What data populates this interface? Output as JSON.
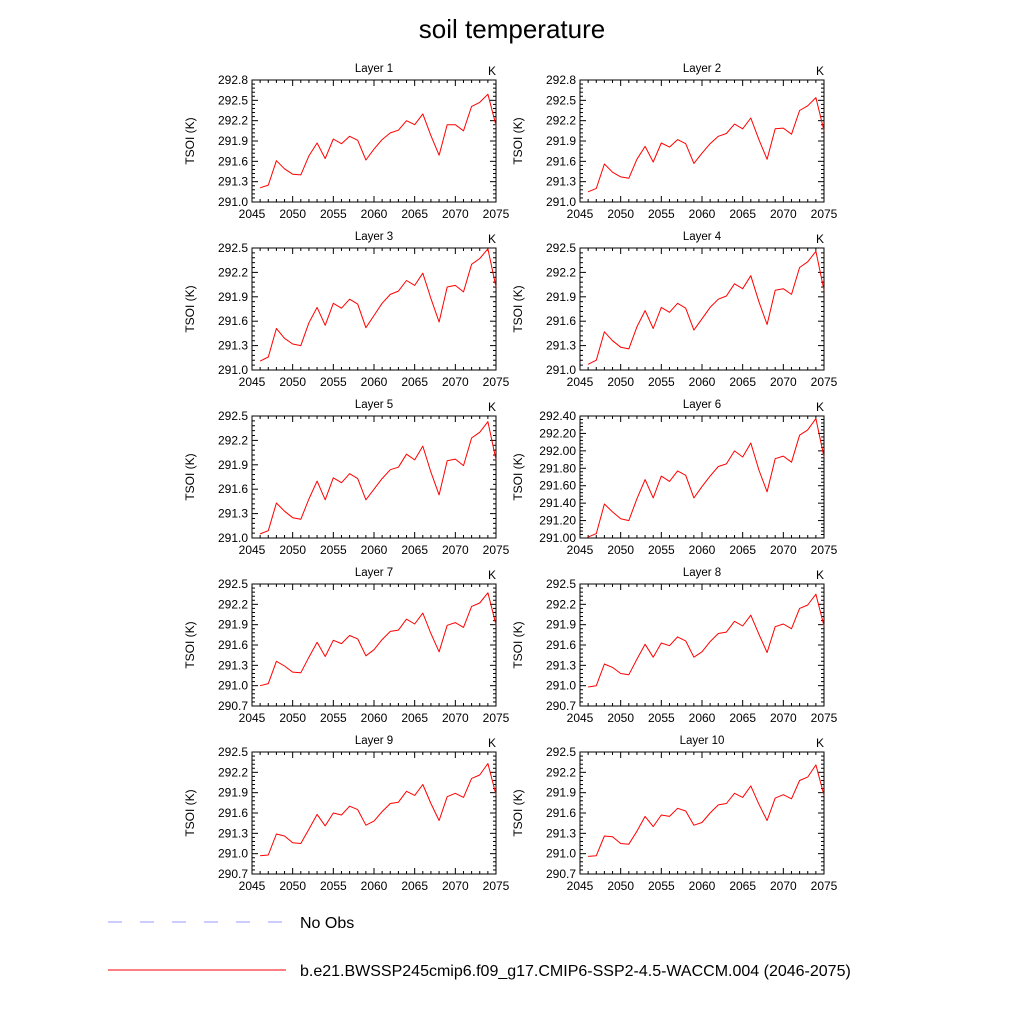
{
  "title": "soil temperature",
  "colors": {
    "model": "#ff0000",
    "obs": "#9999ff",
    "axis": "#000000"
  },
  "legend": [
    {
      "label": "No Obs",
      "color": "#9999ff",
      "style": "dashed"
    },
    {
      "label": "b.e21.BWSSP245cmip6.f09_g17.CMIP6-SSP2-4.5-WACCM.004 (2046-2075)",
      "color": "#ff0000",
      "style": "solid"
    }
  ],
  "chart_data": [
    {
      "type": "line",
      "title": "Layer 1",
      "unit": "K",
      "ylabel": "TSOI  (K)",
      "xlim": [
        2045,
        2075
      ],
      "ylim": [
        291.0,
        292.8
      ],
      "xticks": [
        "2045",
        "2050",
        "2055",
        "2060",
        "2065",
        "2070",
        "2075"
      ],
      "yticks": [
        "291.0",
        "291.3",
        "291.6",
        "291.9",
        "292.2",
        "292.5",
        "292.8"
      ],
      "x": [
        2046,
        2047,
        2048,
        2049,
        2050,
        2051,
        2052,
        2053,
        2054,
        2055,
        2056,
        2057,
        2058,
        2059,
        2060,
        2061,
        2062,
        2063,
        2064,
        2065,
        2066,
        2067,
        2068,
        2069,
        2070,
        2071,
        2072,
        2073,
        2074,
        2075
      ],
      "series": [
        {
          "values": [
            291.21,
            291.25,
            291.61,
            291.49,
            291.41,
            291.4,
            291.68,
            291.87,
            291.64,
            291.93,
            291.86,
            291.97,
            291.91,
            291.62,
            291.78,
            291.92,
            292.02,
            292.06,
            292.2,
            292.14,
            292.3,
            291.98,
            291.69,
            292.14,
            292.14,
            292.05,
            292.41,
            292.47,
            292.59,
            292.13
          ]
        }
      ]
    },
    {
      "type": "line",
      "title": "Layer 2",
      "unit": "K",
      "ylabel": "TSOI  (K)",
      "xlim": [
        2045,
        2075
      ],
      "ylim": [
        291.0,
        292.8
      ],
      "xticks": [
        "2045",
        "2050",
        "2055",
        "2060",
        "2065",
        "2070",
        "2075"
      ],
      "yticks": [
        "291.0",
        "291.3",
        "291.6",
        "291.9",
        "292.2",
        "292.5",
        "292.8"
      ],
      "x": [
        2046,
        2047,
        2048,
        2049,
        2050,
        2051,
        2052,
        2053,
        2054,
        2055,
        2056,
        2057,
        2058,
        2059,
        2060,
        2061,
        2062,
        2063,
        2064,
        2065,
        2066,
        2067,
        2068,
        2069,
        2070,
        2071,
        2072,
        2073,
        2074,
        2075
      ],
      "series": [
        {
          "values": [
            291.15,
            291.2,
            291.56,
            291.44,
            291.37,
            291.35,
            291.63,
            291.82,
            291.59,
            291.87,
            291.81,
            291.92,
            291.86,
            291.57,
            291.72,
            291.86,
            291.97,
            292.01,
            292.15,
            292.08,
            292.24,
            291.92,
            291.63,
            292.08,
            292.09,
            292.0,
            292.35,
            292.42,
            292.54,
            292.05
          ]
        }
      ]
    },
    {
      "type": "line",
      "title": "Layer 3",
      "unit": "K",
      "ylabel": "TSOI  (K)",
      "xlim": [
        2045,
        2075
      ],
      "ylim": [
        291.0,
        292.5
      ],
      "xticks": [
        "2045",
        "2050",
        "2055",
        "2060",
        "2065",
        "2070",
        "2075"
      ],
      "yticks": [
        "291.0",
        "291.3",
        "291.6",
        "291.9",
        "292.2",
        "292.5"
      ],
      "x": [
        2046,
        2047,
        2048,
        2049,
        2050,
        2051,
        2052,
        2053,
        2054,
        2055,
        2056,
        2057,
        2058,
        2059,
        2060,
        2061,
        2062,
        2063,
        2064,
        2065,
        2066,
        2067,
        2068,
        2069,
        2070,
        2071,
        2072,
        2073,
        2074,
        2075
      ],
      "series": [
        {
          "values": [
            291.11,
            291.16,
            291.51,
            291.39,
            291.32,
            291.3,
            291.58,
            291.77,
            291.55,
            291.82,
            291.76,
            291.87,
            291.81,
            291.52,
            291.67,
            291.82,
            291.93,
            291.97,
            292.1,
            292.04,
            292.19,
            291.88,
            291.59,
            292.02,
            292.04,
            291.96,
            292.3,
            292.37,
            292.49,
            292.02
          ]
        }
      ]
    },
    {
      "type": "line",
      "title": "Layer 4",
      "unit": "K",
      "ylabel": "TSOI  (K)",
      "xlim": [
        2045,
        2075
      ],
      "ylim": [
        291.0,
        292.5
      ],
      "xticks": [
        "2045",
        "2050",
        "2055",
        "2060",
        "2065",
        "2070",
        "2075"
      ],
      "yticks": [
        "291.0",
        "291.3",
        "291.6",
        "291.9",
        "292.2",
        "292.5"
      ],
      "x": [
        2046,
        2047,
        2048,
        2049,
        2050,
        2051,
        2052,
        2053,
        2054,
        2055,
        2056,
        2057,
        2058,
        2059,
        2060,
        2061,
        2062,
        2063,
        2064,
        2065,
        2066,
        2067,
        2068,
        2069,
        2070,
        2071,
        2072,
        2073,
        2074,
        2075
      ],
      "series": [
        {
          "values": [
            291.07,
            291.12,
            291.47,
            291.36,
            291.28,
            291.26,
            291.53,
            291.73,
            291.51,
            291.77,
            291.71,
            291.82,
            291.76,
            291.49,
            291.63,
            291.77,
            291.87,
            291.91,
            292.06,
            292.0,
            292.16,
            291.84,
            291.56,
            291.98,
            292.0,
            291.93,
            292.26,
            292.33,
            292.46,
            291.98
          ]
        }
      ]
    },
    {
      "type": "line",
      "title": "Layer 5",
      "unit": "K",
      "ylabel": "TSOI  (K)",
      "xlim": [
        2045,
        2075
      ],
      "ylim": [
        291.0,
        292.5
      ],
      "xticks": [
        "2045",
        "2050",
        "2055",
        "2060",
        "2065",
        "2070",
        "2075"
      ],
      "yticks": [
        "291.0",
        "291.3",
        "291.6",
        "291.9",
        "292.2",
        "292.5"
      ],
      "x": [
        2046,
        2047,
        2048,
        2049,
        2050,
        2051,
        2052,
        2053,
        2054,
        2055,
        2056,
        2057,
        2058,
        2059,
        2060,
        2061,
        2062,
        2063,
        2064,
        2065,
        2066,
        2067,
        2068,
        2069,
        2070,
        2071,
        2072,
        2073,
        2074,
        2075
      ],
      "series": [
        {
          "values": [
            291.05,
            291.09,
            291.43,
            291.33,
            291.25,
            291.23,
            291.48,
            291.7,
            291.47,
            291.74,
            291.68,
            291.79,
            291.73,
            291.47,
            291.6,
            291.73,
            291.84,
            291.87,
            292.03,
            291.96,
            292.13,
            291.81,
            291.53,
            291.95,
            291.97,
            291.89,
            292.23,
            292.3,
            292.43,
            291.96
          ]
        }
      ]
    },
    {
      "type": "line",
      "title": "Layer 6",
      "unit": "K",
      "ylabel": "TSOI  (K)",
      "xlim": [
        2045,
        2075
      ],
      "ylim": [
        291.0,
        292.4
      ],
      "xticks": [
        "2045",
        "2050",
        "2055",
        "2060",
        "2065",
        "2070",
        "2075"
      ],
      "yticks": [
        "291.00",
        "291.20",
        "291.40",
        "291.60",
        "291.80",
        "292.00",
        "292.20",
        "292.40"
      ],
      "x": [
        2046,
        2047,
        2048,
        2049,
        2050,
        2051,
        2052,
        2053,
        2054,
        2055,
        2056,
        2057,
        2058,
        2059,
        2060,
        2061,
        2062,
        2063,
        2064,
        2065,
        2066,
        2067,
        2068,
        2069,
        2070,
        2071,
        2072,
        2073,
        2074,
        2075
      ],
      "series": [
        {
          "values": [
            291.01,
            291.05,
            291.39,
            291.3,
            291.22,
            291.2,
            291.45,
            291.67,
            291.46,
            291.71,
            291.65,
            291.77,
            291.72,
            291.46,
            291.59,
            291.71,
            291.82,
            291.85,
            292.0,
            291.93,
            292.09,
            291.78,
            291.53,
            291.91,
            291.94,
            291.87,
            292.18,
            292.24,
            292.37,
            291.93
          ]
        }
      ]
    },
    {
      "type": "line",
      "title": "Layer 7",
      "unit": "K",
      "ylabel": "TSOI  (K)",
      "xlim": [
        2045,
        2075
      ],
      "ylim": [
        290.7,
        292.5
      ],
      "xticks": [
        "2045",
        "2050",
        "2055",
        "2060",
        "2065",
        "2070",
        "2075"
      ],
      "yticks": [
        "290.7",
        "291.0",
        "291.3",
        "291.6",
        "291.9",
        "292.2",
        "292.5"
      ],
      "x": [
        2046,
        2047,
        2048,
        2049,
        2050,
        2051,
        2052,
        2053,
        2054,
        2055,
        2056,
        2057,
        2058,
        2059,
        2060,
        2061,
        2062,
        2063,
        2064,
        2065,
        2066,
        2067,
        2068,
        2069,
        2070,
        2071,
        2072,
        2073,
        2074,
        2075
      ],
      "series": [
        {
          "values": [
            291.0,
            291.03,
            291.36,
            291.29,
            291.2,
            291.19,
            291.42,
            291.64,
            291.43,
            291.67,
            291.62,
            291.74,
            291.69,
            291.44,
            291.53,
            291.68,
            291.8,
            291.82,
            291.98,
            291.91,
            292.07,
            291.77,
            291.5,
            291.89,
            291.93,
            291.86,
            292.17,
            292.22,
            292.37,
            291.9
          ]
        }
      ]
    },
    {
      "type": "line",
      "title": "Layer 8",
      "unit": "K",
      "ylabel": "TSOI  (K)",
      "xlim": [
        2045,
        2075
      ],
      "ylim": [
        290.7,
        292.5
      ],
      "xticks": [
        "2045",
        "2050",
        "2055",
        "2060",
        "2065",
        "2070",
        "2075"
      ],
      "yticks": [
        "290.7",
        "291.0",
        "291.3",
        "291.6",
        "291.9",
        "292.2",
        "292.5"
      ],
      "x": [
        2046,
        2047,
        2048,
        2049,
        2050,
        2051,
        2052,
        2053,
        2054,
        2055,
        2056,
        2057,
        2058,
        2059,
        2060,
        2061,
        2062,
        2063,
        2064,
        2065,
        2066,
        2067,
        2068,
        2069,
        2070,
        2071,
        2072,
        2073,
        2074,
        2075
      ],
      "series": [
        {
          "values": [
            290.98,
            291.0,
            291.32,
            291.27,
            291.18,
            291.16,
            291.39,
            291.61,
            291.42,
            291.63,
            291.59,
            291.72,
            291.66,
            291.42,
            291.5,
            291.65,
            291.77,
            291.79,
            291.95,
            291.88,
            292.04,
            291.76,
            291.49,
            291.87,
            291.91,
            291.84,
            292.14,
            292.19,
            292.35,
            291.88
          ]
        }
      ]
    },
    {
      "type": "line",
      "title": "Layer 9",
      "unit": "K",
      "ylabel": "TSOI  (K)",
      "xlim": [
        2045,
        2075
      ],
      "ylim": [
        290.7,
        292.5
      ],
      "xticks": [
        "2045",
        "2050",
        "2055",
        "2060",
        "2065",
        "2070",
        "2075"
      ],
      "yticks": [
        "290.7",
        "291.0",
        "291.3",
        "291.6",
        "291.9",
        "292.2",
        "292.5"
      ],
      "x": [
        2046,
        2047,
        2048,
        2049,
        2050,
        2051,
        2052,
        2053,
        2054,
        2055,
        2056,
        2057,
        2058,
        2059,
        2060,
        2061,
        2062,
        2063,
        2064,
        2065,
        2066,
        2067,
        2068,
        2069,
        2070,
        2071,
        2072,
        2073,
        2074,
        2075
      ],
      "series": [
        {
          "values": [
            290.97,
            290.98,
            291.29,
            291.26,
            291.16,
            291.15,
            291.36,
            291.58,
            291.41,
            291.6,
            291.57,
            291.7,
            291.65,
            291.42,
            291.48,
            291.62,
            291.74,
            291.76,
            291.92,
            291.86,
            292.02,
            291.74,
            291.49,
            291.84,
            291.89,
            291.83,
            292.11,
            292.16,
            292.33,
            291.87
          ]
        }
      ]
    },
    {
      "type": "line",
      "title": "Layer 10",
      "unit": "K",
      "ylabel": "TSOI  (K)",
      "xlim": [
        2045,
        2075
      ],
      "ylim": [
        290.7,
        292.5
      ],
      "xticks": [
        "2045",
        "2050",
        "2055",
        "2060",
        "2065",
        "2070",
        "2075"
      ],
      "yticks": [
        "290.7",
        "291.0",
        "291.3",
        "291.6",
        "291.9",
        "292.2",
        "292.5"
      ],
      "x": [
        2046,
        2047,
        2048,
        2049,
        2050,
        2051,
        2052,
        2053,
        2054,
        2055,
        2056,
        2057,
        2058,
        2059,
        2060,
        2061,
        2062,
        2063,
        2064,
        2065,
        2066,
        2067,
        2068,
        2069,
        2070,
        2071,
        2072,
        2073,
        2074,
        2075
      ],
      "series": [
        {
          "values": [
            290.96,
            290.97,
            291.26,
            291.25,
            291.15,
            291.14,
            291.33,
            291.55,
            291.4,
            291.57,
            291.55,
            291.67,
            291.63,
            291.42,
            291.46,
            291.6,
            291.72,
            291.74,
            291.89,
            291.83,
            292.0,
            291.73,
            291.49,
            291.82,
            291.87,
            291.81,
            292.08,
            292.13,
            292.31,
            291.86
          ]
        }
      ]
    }
  ]
}
